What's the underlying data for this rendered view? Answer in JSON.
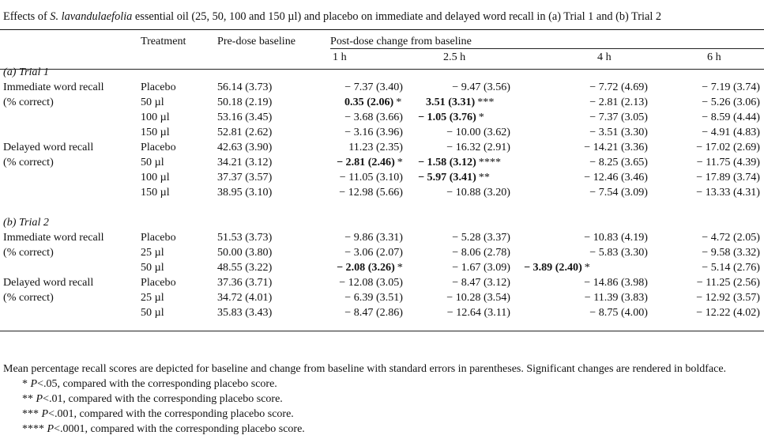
{
  "caption": {
    "prefix": "Effects of ",
    "species": "S. lavandulaefolia",
    "suffix": " essential oil (25, 50, 100 and 150 µl) and placebo on immediate and delayed word recall in (a) Trial 1 and (b) Trial 2"
  },
  "headers": {
    "treatment": "Treatment",
    "baseline": "Pre-dose baseline",
    "post_dose": "Post-dose change from baseline",
    "times": [
      "1 h",
      "2.5 h",
      "4 h",
      "6 h"
    ]
  },
  "sections": [
    {
      "title": "(a) Trial 1",
      "rows": [
        {
          "label": "Immediate word recall",
          "treatment": "Placebo",
          "baseline": "56.14 (3.73)",
          "cells": [
            {
              "v": "− 7.37 (3.40)",
              "b": false,
              "s": ""
            },
            {
              "v": "− 9.47 (3.56)",
              "b": false,
              "s": ""
            },
            {
              "v": "− 7.72 (4.69)",
              "b": false,
              "s": ""
            },
            {
              "v": "− 7.19 (3.74)",
              "b": false,
              "s": ""
            }
          ]
        },
        {
          "label": "(% correct)",
          "treatment": "50 µl",
          "baseline": "50.18 (2.19)",
          "cells": [
            {
              "v": "0.35 (2.06)",
              "b": true,
              "s": "*"
            },
            {
              "v": "3.51 (3.31)",
              "b": true,
              "s": "***"
            },
            {
              "v": "− 2.81 (2.13)",
              "b": false,
              "s": ""
            },
            {
              "v": "− 5.26 (3.06)",
              "b": false,
              "s": ""
            }
          ]
        },
        {
          "label": "",
          "treatment": "100 µl",
          "baseline": "53.16 (3.45)",
          "cells": [
            {
              "v": "− 3.68 (3.66)",
              "b": false,
              "s": ""
            },
            {
              "v": "− 1.05 (3.76)",
              "b": true,
              "s": "*"
            },
            {
              "v": "− 7.37 (3.05)",
              "b": false,
              "s": ""
            },
            {
              "v": "− 8.59 (4.44)",
              "b": false,
              "s": ""
            }
          ]
        },
        {
          "label": "",
          "treatment": "150 µl",
          "baseline": "52.81 (2.62)",
          "cells": [
            {
              "v": "− 3.16 (3.96)",
              "b": false,
              "s": ""
            },
            {
              "v": "− 10.00 (3.62)",
              "b": false,
              "s": ""
            },
            {
              "v": "− 3.51 (3.30)",
              "b": false,
              "s": ""
            },
            {
              "v": "− 4.91 (4.83)",
              "b": false,
              "s": ""
            }
          ]
        },
        {
          "label": "Delayed word recall",
          "treatment": "Placebo",
          "baseline": "42.63 (3.90)",
          "cells": [
            {
              "v": "11.23 (2.35)",
              "b": false,
              "s": ""
            },
            {
              "v": "− 16.32 (2.91)",
              "b": false,
              "s": ""
            },
            {
              "v": "− 14.21 (3.36)",
              "b": false,
              "s": ""
            },
            {
              "v": "− 17.02 (2.69)",
              "b": false,
              "s": ""
            }
          ]
        },
        {
          "label": "(% correct)",
          "treatment": "50 µl",
          "baseline": "34.21 (3.12)",
          "cells": [
            {
              "v": "− 2.81 (2.46)",
              "b": true,
              "s": "*"
            },
            {
              "v": "− 1.58 (3.12)",
              "b": true,
              "s": "****"
            },
            {
              "v": "− 8.25 (3.65)",
              "b": false,
              "s": ""
            },
            {
              "v": "− 11.75 (4.39)",
              "b": false,
              "s": ""
            }
          ]
        },
        {
          "label": "",
          "treatment": "100 µl",
          "baseline": "37.37 (3.57)",
          "cells": [
            {
              "v": "− 11.05 (3.10)",
              "b": false,
              "s": ""
            },
            {
              "v": "− 5.97 (3.41)",
              "b": true,
              "s": "**"
            },
            {
              "v": "− 12.46 (3.46)",
              "b": false,
              "s": ""
            },
            {
              "v": "− 17.89 (3.74)",
              "b": false,
              "s": ""
            }
          ]
        },
        {
          "label": "",
          "treatment": "150 µl",
          "baseline": "38.95 (3.10)",
          "cells": [
            {
              "v": "− 12.98 (5.66)",
              "b": false,
              "s": ""
            },
            {
              "v": "− 10.88 (3.20)",
              "b": false,
              "s": ""
            },
            {
              "v": "− 7.54 (3.09)",
              "b": false,
              "s": ""
            },
            {
              "v": "− 13.33 (4.31)",
              "b": false,
              "s": ""
            }
          ]
        }
      ]
    },
    {
      "title": "(b) Trial 2",
      "rows": [
        {
          "label": "Immediate word recall",
          "treatment": "Placebo",
          "baseline": "51.53 (3.73)",
          "cells": [
            {
              "v": "− 9.86 (3.31)",
              "b": false,
              "s": ""
            },
            {
              "v": "− 5.28 (3.37)",
              "b": false,
              "s": ""
            },
            {
              "v": "− 10.83 (4.19)",
              "b": false,
              "s": ""
            },
            {
              "v": "− 4.72 (2.05)",
              "b": false,
              "s": ""
            }
          ]
        },
        {
          "label": "(% correct)",
          "treatment": "25 µl",
          "baseline": "50.00 (3.80)",
          "cells": [
            {
              "v": "− 3.06 (2.07)",
              "b": false,
              "s": ""
            },
            {
              "v": "− 8.06 (2.78)",
              "b": false,
              "s": ""
            },
            {
              "v": "− 5.83 (3.30)",
              "b": false,
              "s": ""
            },
            {
              "v": "− 9.58 (3.32)",
              "b": false,
              "s": ""
            }
          ]
        },
        {
          "label": "",
          "treatment": "50 µl",
          "baseline": "48.55 (3.22)",
          "cells": [
            {
              "v": "− 2.08 (3.26)",
              "b": true,
              "s": "*"
            },
            {
              "v": "− 1.67 (3.09)",
              "b": false,
              "s": ""
            },
            {
              "v": "− 3.89 (2.40)",
              "b": true,
              "s": "*"
            },
            {
              "v": "− 5.14 (2.76)",
              "b": false,
              "s": ""
            }
          ]
        },
        {
          "label": "Delayed word recall",
          "treatment": "Placebo",
          "baseline": "37.36 (3.71)",
          "cells": [
            {
              "v": "− 12.08 (3.05)",
              "b": false,
              "s": ""
            },
            {
              "v": "− 8.47 (3.12)",
              "b": false,
              "s": ""
            },
            {
              "v": "− 14.86 (3.98)",
              "b": false,
              "s": ""
            },
            {
              "v": "− 11.25 (2.56)",
              "b": false,
              "s": ""
            }
          ]
        },
        {
          "label": "(% correct)",
          "treatment": "25 µl",
          "baseline": "34.72 (4.01)",
          "cells": [
            {
              "v": "− 6.39 (3.51)",
              "b": false,
              "s": ""
            },
            {
              "v": "− 10.28 (3.54)",
              "b": false,
              "s": ""
            },
            {
              "v": "− 11.39 (3.83)",
              "b": false,
              "s": ""
            },
            {
              "v": "− 12.92 (3.57)",
              "b": false,
              "s": ""
            }
          ]
        },
        {
          "label": "",
          "treatment": "50 µl",
          "baseline": "35.83 (3.43)",
          "cells": [
            {
              "v": "− 8.47 (2.86)",
              "b": false,
              "s": ""
            },
            {
              "v": "− 12.64 (3.11)",
              "b": false,
              "s": ""
            },
            {
              "v": "− 8.75 (4.00)",
              "b": false,
              "s": ""
            },
            {
              "v": "− 12.22 (4.02)",
              "b": false,
              "s": ""
            }
          ]
        }
      ]
    }
  ],
  "notes": {
    "main": "Mean percentage recall scores are depicted for baseline and change from baseline with standard errors in parentheses. Significant changes are rendered in boldface.",
    "footnotes": [
      {
        "mark": "*",
        "p": "P",
        "text": "<.05, compared with the corresponding placebo score."
      },
      {
        "mark": "**",
        "p": "P",
        "text": "<.01, compared with the corresponding placebo score."
      },
      {
        "mark": "***",
        "p": "P",
        "text": "<.001, compared with the corresponding placebo score."
      },
      {
        "mark": "****",
        "p": "P",
        "text": "<.0001, compared with the corresponding placebo score."
      }
    ]
  }
}
